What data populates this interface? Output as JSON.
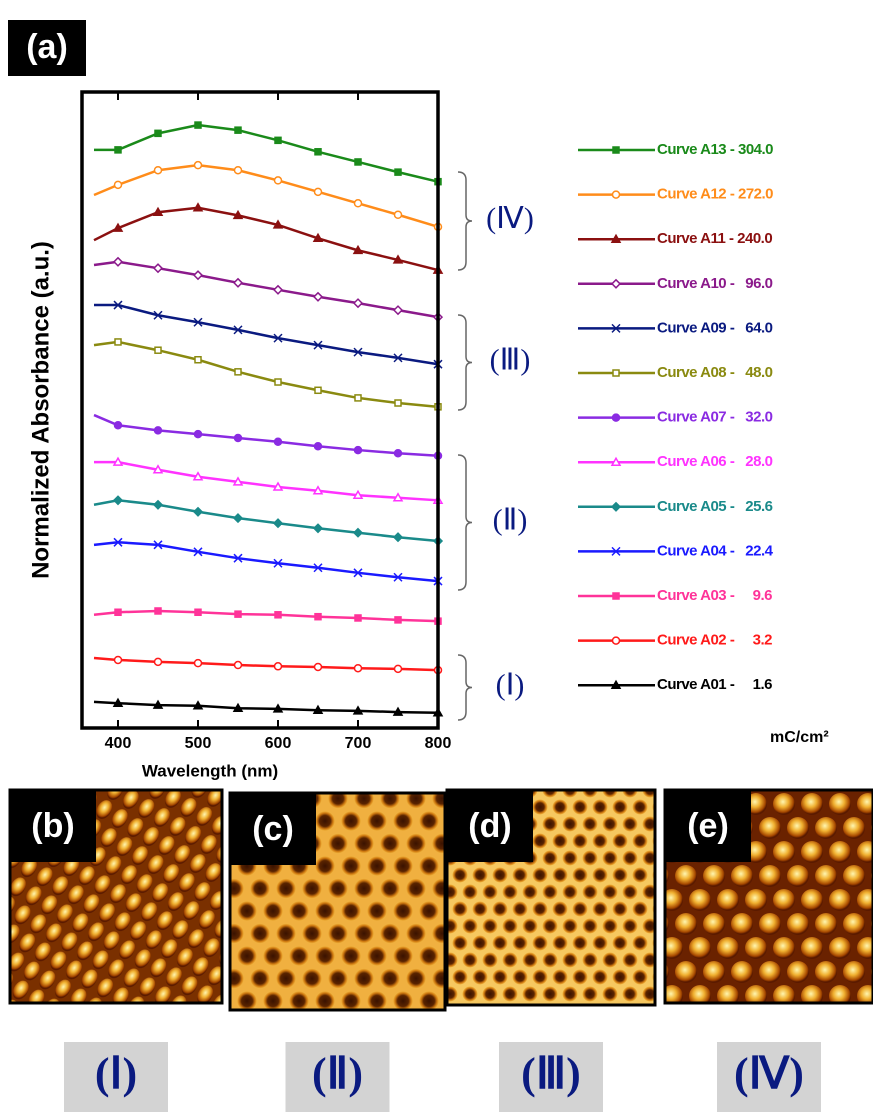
{
  "chart_data": {
    "type": "line",
    "panel_label": "(a)",
    "x_label": "Wavelength (nm)",
    "y_label": "Normalized Absorbance (a.u.)",
    "xlim": [
      355,
      800
    ],
    "xticks": [
      400,
      500,
      600,
      700,
      800
    ],
    "ylim": [
      0,
      100
    ],
    "x": [
      370,
      400,
      450,
      500,
      550,
      600,
      650,
      700,
      750,
      800
    ],
    "series": [
      {
        "name": "Curve A13 - 304.0",
        "color": "#1a8a1a",
        "values": [
          90.9,
          90.9,
          93.5,
          94.8,
          94.0,
          92.4,
          90.6,
          89.0,
          87.4,
          85.9
        ]
      },
      {
        "name": "Curve A12 - 272.0",
        "color": "#ff8c1a",
        "values": [
          83.8,
          85.4,
          87.7,
          88.5,
          87.7,
          86.1,
          84.3,
          82.5,
          80.7,
          78.8
        ]
      },
      {
        "name": "Curve A11 - 240.0",
        "color": "#8b1010",
        "values": [
          76.7,
          78.6,
          81.1,
          81.8,
          80.6,
          79.1,
          77.0,
          75.1,
          73.6,
          72.0
        ]
      },
      {
        "name": "Curve A10 -   96.0",
        "color": "#8b1a8b",
        "values": [
          72.8,
          73.3,
          72.3,
          71.2,
          70.0,
          68.9,
          67.8,
          66.8,
          65.7,
          64.6
        ]
      },
      {
        "name": "Curve A09 -   64.0",
        "color": "#0a1a80",
        "values": [
          66.5,
          66.5,
          64.9,
          63.8,
          62.6,
          61.3,
          60.2,
          59.1,
          58.2,
          57.2
        ]
      },
      {
        "name": "Curve A08 -   48.0",
        "color": "#8a8a10",
        "values": [
          60.2,
          60.7,
          59.4,
          57.9,
          56.0,
          54.4,
          53.1,
          51.9,
          51.1,
          50.5
        ]
      },
      {
        "name": "Curve A07 -   32.0",
        "color": "#8a2be2",
        "values": [
          49.2,
          47.6,
          46.8,
          46.2,
          45.6,
          45.0,
          44.3,
          43.7,
          43.2,
          42.8
        ]
      },
      {
        "name": "Curve A06 -   28.0",
        "color": "#ff33ff",
        "values": [
          41.8,
          41.8,
          40.6,
          39.5,
          38.7,
          37.9,
          37.3,
          36.6,
          36.2,
          35.8
        ]
      },
      {
        "name": "Curve A05 -   25.6",
        "color": "#1a8a8a",
        "values": [
          35.1,
          35.8,
          35.1,
          34.0,
          33.0,
          32.2,
          31.4,
          30.7,
          30.0,
          29.4
        ]
      },
      {
        "name": "Curve A04 -   22.4",
        "color": "#1a1aff",
        "values": [
          28.8,
          29.2,
          28.8,
          27.7,
          26.7,
          25.9,
          25.2,
          24.4,
          23.7,
          23.1
        ]
      },
      {
        "name": "Curve A03 -     9.6",
        "color": "#ff3399",
        "values": [
          17.8,
          18.2,
          18.4,
          18.2,
          17.9,
          17.8,
          17.5,
          17.3,
          17.0,
          16.8
        ]
      },
      {
        "name": "Curve A02 -     3.2",
        "color": "#ff1a1a",
        "values": [
          11.0,
          10.7,
          10.4,
          10.2,
          9.9,
          9.7,
          9.6,
          9.4,
          9.3,
          9.1
        ]
      },
      {
        "name": "Curve A01 -     1.6",
        "color": "#000000",
        "values": [
          4.1,
          3.9,
          3.6,
          3.5,
          3.1,
          3.0,
          2.8,
          2.7,
          2.5,
          2.4
        ]
      }
    ],
    "legend_unit": "mC/cm²",
    "groups": [
      "(Ⅳ)",
      "(Ⅲ)",
      "(Ⅱ)",
      "(Ⅰ)"
    ]
  },
  "panels": [
    {
      "label": "(b)",
      "caption": "(Ⅰ)"
    },
    {
      "label": "(c)",
      "caption": "(Ⅱ)"
    },
    {
      "label": "(d)",
      "caption": "(Ⅲ)"
    },
    {
      "label": "(e)",
      "caption": "(Ⅳ)"
    }
  ]
}
